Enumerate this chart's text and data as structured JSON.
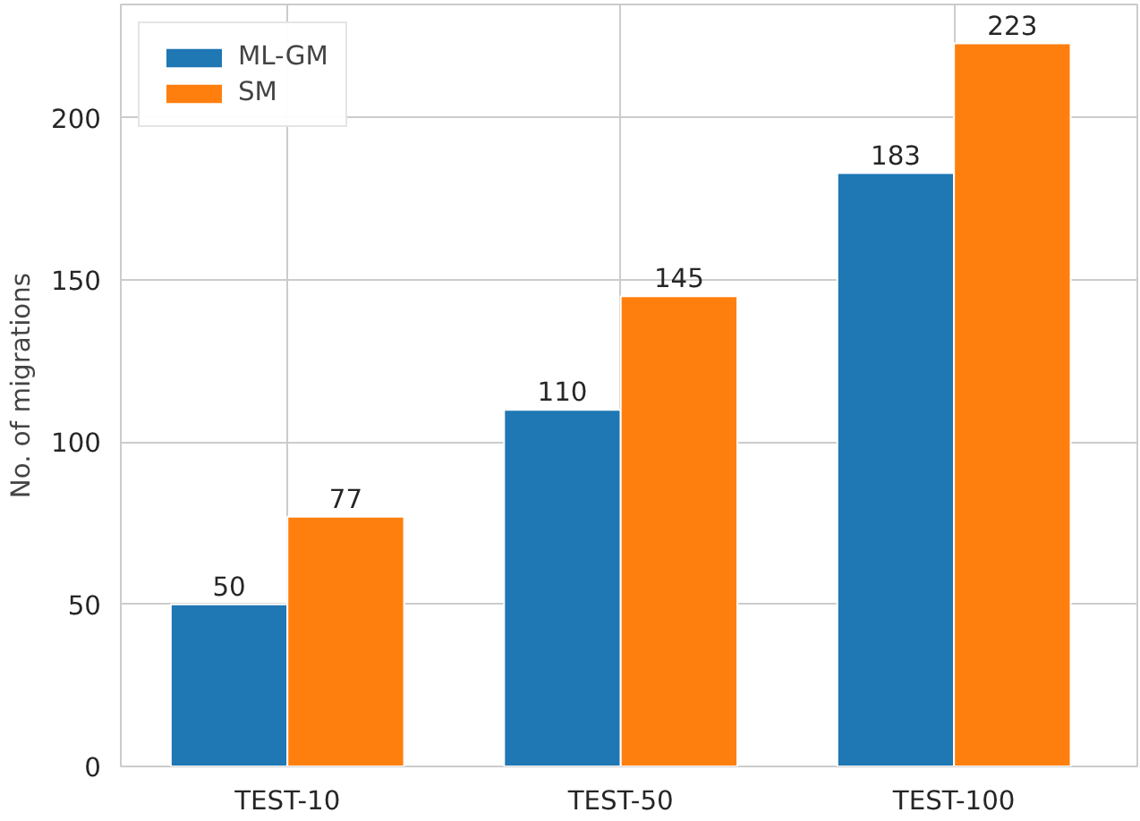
{
  "chart_data": {
    "type": "bar",
    "ylabel": "No. of migrations",
    "categories": [
      "TEST-10",
      "TEST-50",
      "TEST-100"
    ],
    "series": [
      {
        "name": "ML-GM",
        "color": "#1f77b4",
        "values": [
          50,
          110,
          183
        ]
      },
      {
        "name": "SM",
        "color": "#ff7f0e",
        "values": [
          77,
          145,
          223
        ]
      }
    ],
    "ylim": [
      0,
      235
    ],
    "yticks": [
      0,
      50,
      100,
      150,
      200
    ],
    "grid": true,
    "legend": "top left",
    "data_labels": true
  }
}
